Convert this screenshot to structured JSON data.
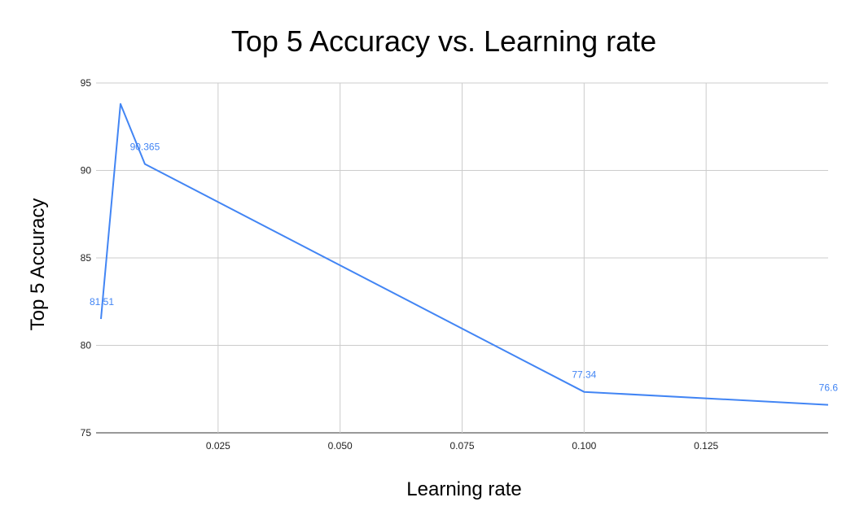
{
  "chart_data": {
    "type": "line",
    "title": "Top 5 Accuracy vs. Learning rate",
    "xlabel": "Learning rate",
    "ylabel": "Top 5 Accuracy",
    "xlim": [
      0,
      0.15
    ],
    "ylim": [
      75,
      95
    ],
    "x_ticks": [
      0.025,
      0.05,
      0.075,
      0.1,
      0.125
    ],
    "x_tick_labels": [
      "0.025",
      "0.050",
      "0.075",
      "0.100",
      "0.125"
    ],
    "y_ticks": [
      75,
      80,
      85,
      90,
      95
    ],
    "y_tick_labels": [
      "75",
      "80",
      "85",
      "90",
      "95"
    ],
    "grid": true,
    "series": [
      {
        "color": "#4285f4",
        "points": [
          {
            "x": 0.001,
            "y": 81.51,
            "label": "81.51"
          },
          {
            "x": 0.005,
            "y": 93.8,
            "label": ""
          },
          {
            "x": 0.01,
            "y": 90.365,
            "label": "90.365"
          },
          {
            "x": 0.1,
            "y": 77.34,
            "label": "77.34"
          },
          {
            "x": 0.15,
            "y": 76.6,
            "label": "76.6"
          }
        ]
      }
    ]
  }
}
